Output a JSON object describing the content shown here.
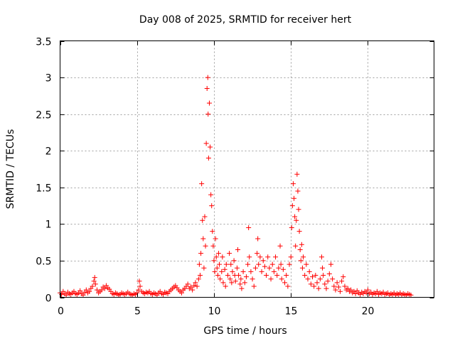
{
  "chart_data": {
    "type": "scatter",
    "title": "Day 008 of 2025, SRMTID for receiver hert",
    "xlabel": "GPS time / hours",
    "ylabel": "SRMTID / TECUs",
    "xlim": [
      0,
      24.3
    ],
    "ylim": [
      0,
      3.5
    ],
    "x_ticks": [
      0,
      5,
      10,
      15,
      20
    ],
    "x_tick_labels": [
      "0",
      "5",
      "10",
      "15",
      "20"
    ],
    "y_ticks": [
      0,
      0.5,
      1,
      1.5,
      2,
      2.5,
      3,
      3.5
    ],
    "y_tick_labels": [
      "0",
      "0.5",
      "1",
      "1.5",
      "2",
      "2.5",
      "3",
      "3.5"
    ],
    "grid": true,
    "marker": "+",
    "color": "#ff0000",
    "series": [
      {
        "name": "SRMTID",
        "points": [
          [
            0.0,
            0.06
          ],
          [
            0.1,
            0.04
          ],
          [
            0.2,
            0.08
          ],
          [
            0.3,
            0.05
          ],
          [
            0.4,
            0.03
          ],
          [
            0.5,
            0.07
          ],
          [
            0.6,
            0.05
          ],
          [
            0.7,
            0.04
          ],
          [
            0.8,
            0.06
          ],
          [
            0.9,
            0.08
          ],
          [
            1.0,
            0.05
          ],
          [
            1.1,
            0.04
          ],
          [
            1.2,
            0.06
          ],
          [
            1.3,
            0.09
          ],
          [
            1.4,
            0.05
          ],
          [
            1.5,
            0.03
          ],
          [
            1.6,
            0.07
          ],
          [
            1.7,
            0.1
          ],
          [
            1.8,
            0.06
          ],
          [
            1.9,
            0.08
          ],
          [
            2.0,
            0.12
          ],
          [
            2.1,
            0.15
          ],
          [
            2.2,
            0.22
          ],
          [
            2.25,
            0.27
          ],
          [
            2.3,
            0.18
          ],
          [
            2.4,
            0.1
          ],
          [
            2.5,
            0.06
          ],
          [
            2.6,
            0.08
          ],
          [
            2.7,
            0.1
          ],
          [
            2.8,
            0.14
          ],
          [
            2.9,
            0.12
          ],
          [
            3.0,
            0.16
          ],
          [
            3.1,
            0.13
          ],
          [
            3.2,
            0.11
          ],
          [
            3.3,
            0.08
          ],
          [
            3.4,
            0.05
          ],
          [
            3.5,
            0.04
          ],
          [
            3.6,
            0.06
          ],
          [
            3.7,
            0.05
          ],
          [
            3.8,
            0.03
          ],
          [
            3.9,
            0.04
          ],
          [
            4.0,
            0.06
          ],
          [
            4.1,
            0.05
          ],
          [
            4.2,
            0.04
          ],
          [
            4.3,
            0.05
          ],
          [
            4.4,
            0.07
          ],
          [
            4.5,
            0.05
          ],
          [
            4.6,
            0.04
          ],
          [
            4.7,
            0.03
          ],
          [
            4.8,
            0.05
          ],
          [
            4.9,
            0.04
          ],
          [
            5.0,
            0.06
          ],
          [
            5.1,
            0.1
          ],
          [
            5.15,
            0.22
          ],
          [
            5.2,
            0.15
          ],
          [
            5.3,
            0.08
          ],
          [
            5.4,
            0.06
          ],
          [
            5.5,
            0.05
          ],
          [
            5.6,
            0.07
          ],
          [
            5.7,
            0.06
          ],
          [
            5.8,
            0.08
          ],
          [
            5.9,
            0.05
          ],
          [
            6.0,
            0.04
          ],
          [
            6.1,
            0.06
          ],
          [
            6.2,
            0.05
          ],
          [
            6.3,
            0.03
          ],
          [
            6.4,
            0.06
          ],
          [
            6.5,
            0.08
          ],
          [
            6.6,
            0.05
          ],
          [
            6.7,
            0.04
          ],
          [
            6.8,
            0.07
          ],
          [
            6.9,
            0.06
          ],
          [
            7.0,
            0.05
          ],
          [
            7.1,
            0.08
          ],
          [
            7.2,
            0.1
          ],
          [
            7.3,
            0.12
          ],
          [
            7.4,
            0.14
          ],
          [
            7.5,
            0.16
          ],
          [
            7.6,
            0.13
          ],
          [
            7.7,
            0.1
          ],
          [
            7.8,
            0.08
          ],
          [
            7.9,
            0.06
          ],
          [
            8.0,
            0.1
          ],
          [
            8.1,
            0.12
          ],
          [
            8.2,
            0.15
          ],
          [
            8.3,
            0.18
          ],
          [
            8.4,
            0.12
          ],
          [
            8.5,
            0.14
          ],
          [
            8.6,
            0.1
          ],
          [
            8.7,
            0.16
          ],
          [
            8.8,
            0.2
          ],
          [
            8.9,
            0.15
          ],
          [
            9.0,
            0.25
          ],
          [
            9.05,
            0.45
          ],
          [
            9.1,
            0.3
          ],
          [
            9.15,
            0.6
          ],
          [
            9.2,
            1.55
          ],
          [
            9.25,
            1.05
          ],
          [
            9.3,
            0.8
          ],
          [
            9.35,
            0.4
          ],
          [
            9.4,
            1.1
          ],
          [
            9.45,
            0.7
          ],
          [
            9.5,
            2.1
          ],
          [
            9.55,
            2.85
          ],
          [
            9.6,
            3.0
          ],
          [
            9.62,
            2.5
          ],
          [
            9.65,
            1.9
          ],
          [
            9.7,
            2.65
          ],
          [
            9.75,
            2.05
          ],
          [
            9.8,
            1.4
          ],
          [
            9.85,
            1.25
          ],
          [
            9.9,
            0.9
          ],
          [
            9.95,
            0.7
          ],
          [
            10.0,
            0.5
          ],
          [
            10.05,
            0.35
          ],
          [
            10.1,
            0.8
          ],
          [
            10.15,
            0.55
          ],
          [
            10.2,
            0.4
          ],
          [
            10.25,
            0.3
          ],
          [
            10.3,
            0.6
          ],
          [
            10.35,
            0.45
          ],
          [
            10.4,
            0.25
          ],
          [
            10.5,
            0.35
          ],
          [
            10.55,
            0.55
          ],
          [
            10.6,
            0.2
          ],
          [
            10.7,
            0.38
          ],
          [
            10.75,
            0.15
          ],
          [
            10.8,
            0.45
          ],
          [
            10.9,
            0.3
          ],
          [
            11.0,
            0.6
          ],
          [
            11.05,
            0.25
          ],
          [
            11.1,
            0.45
          ],
          [
            11.15,
            0.2
          ],
          [
            11.2,
            0.35
          ],
          [
            11.3,
            0.5
          ],
          [
            11.35,
            0.3
          ],
          [
            11.4,
            0.22
          ],
          [
            11.5,
            0.4
          ],
          [
            11.55,
            0.65
          ],
          [
            11.6,
            0.3
          ],
          [
            11.7,
            0.18
          ],
          [
            11.75,
            0.25
          ],
          [
            11.8,
            0.12
          ],
          [
            11.9,
            0.35
          ],
          [
            12.0,
            0.2
          ],
          [
            12.1,
            0.28
          ],
          [
            12.2,
            0.45
          ],
          [
            12.25,
            0.95
          ],
          [
            12.3,
            0.55
          ],
          [
            12.4,
            0.35
          ],
          [
            12.5,
            0.25
          ],
          [
            12.6,
            0.15
          ],
          [
            12.7,
            0.4
          ],
          [
            12.8,
            0.6
          ],
          [
            12.85,
            0.8
          ],
          [
            12.9,
            0.45
          ],
          [
            13.0,
            0.55
          ],
          [
            13.1,
            0.35
          ],
          [
            13.2,
            0.5
          ],
          [
            13.3,
            0.42
          ],
          [
            13.4,
            0.3
          ],
          [
            13.5,
            0.55
          ],
          [
            13.6,
            0.4
          ],
          [
            13.7,
            0.25
          ],
          [
            13.8,
            0.45
          ],
          [
            13.9,
            0.35
          ],
          [
            14.0,
            0.55
          ],
          [
            14.1,
            0.3
          ],
          [
            14.2,
            0.4
          ],
          [
            14.3,
            0.7
          ],
          [
            14.35,
            0.45
          ],
          [
            14.4,
            0.25
          ],
          [
            14.5,
            0.38
          ],
          [
            14.6,
            0.2
          ],
          [
            14.7,
            0.3
          ],
          [
            14.8,
            0.15
          ],
          [
            14.9,
            0.45
          ],
          [
            15.0,
            0.55
          ],
          [
            15.05,
            0.95
          ],
          [
            15.1,
            1.25
          ],
          [
            15.15,
            1.55
          ],
          [
            15.2,
            1.35
          ],
          [
            15.25,
            1.1
          ],
          [
            15.3,
            0.7
          ],
          [
            15.35,
            1.05
          ],
          [
            15.4,
            1.68
          ],
          [
            15.45,
            1.45
          ],
          [
            15.5,
            1.2
          ],
          [
            15.55,
            0.9
          ],
          [
            15.6,
            0.65
          ],
          [
            15.65,
            0.5
          ],
          [
            15.7,
            0.72
          ],
          [
            15.75,
            0.4
          ],
          [
            15.8,
            0.55
          ],
          [
            15.9,
            0.3
          ],
          [
            16.0,
            0.45
          ],
          [
            16.1,
            0.25
          ],
          [
            16.2,
            0.35
          ],
          [
            16.3,
            0.18
          ],
          [
            16.4,
            0.28
          ],
          [
            16.5,
            0.15
          ],
          [
            16.6,
            0.3
          ],
          [
            16.7,
            0.2
          ],
          [
            16.8,
            0.12
          ],
          [
            16.9,
            0.25
          ],
          [
            17.0,
            0.55
          ],
          [
            17.05,
            0.4
          ],
          [
            17.1,
            0.3
          ],
          [
            17.2,
            0.18
          ],
          [
            17.3,
            0.12
          ],
          [
            17.4,
            0.22
          ],
          [
            17.5,
            0.32
          ],
          [
            17.6,
            0.45
          ],
          [
            17.7,
            0.25
          ],
          [
            17.8,
            0.15
          ],
          [
            17.9,
            0.1
          ],
          [
            18.0,
            0.2
          ],
          [
            18.1,
            0.14
          ],
          [
            18.2,
            0.08
          ],
          [
            18.3,
            0.22
          ],
          [
            18.4,
            0.28
          ],
          [
            18.5,
            0.15
          ],
          [
            18.6,
            0.1
          ],
          [
            18.7,
            0.12
          ],
          [
            18.8,
            0.08
          ],
          [
            18.9,
            0.1
          ],
          [
            19.0,
            0.06
          ],
          [
            19.1,
            0.08
          ],
          [
            19.2,
            0.05
          ],
          [
            19.3,
            0.09
          ],
          [
            19.4,
            0.06
          ],
          [
            19.5,
            0.04
          ],
          [
            19.6,
            0.07
          ],
          [
            19.7,
            0.05
          ],
          [
            19.8,
            0.08
          ],
          [
            19.9,
            0.06
          ],
          [
            20.0,
            0.1
          ],
          [
            20.1,
            0.05
          ],
          [
            20.2,
            0.07
          ],
          [
            20.3,
            0.04
          ],
          [
            20.4,
            0.06
          ],
          [
            20.5,
            0.05
          ],
          [
            20.6,
            0.08
          ],
          [
            20.7,
            0.04
          ],
          [
            20.8,
            0.06
          ],
          [
            20.9,
            0.05
          ],
          [
            21.0,
            0.07
          ],
          [
            21.1,
            0.04
          ],
          [
            21.2,
            0.05
          ],
          [
            21.3,
            0.06
          ],
          [
            21.4,
            0.03
          ],
          [
            21.5,
            0.05
          ],
          [
            21.6,
            0.04
          ],
          [
            21.7,
            0.06
          ],
          [
            21.8,
            0.03
          ],
          [
            21.9,
            0.05
          ],
          [
            22.0,
            0.04
          ],
          [
            22.1,
            0.06
          ],
          [
            22.2,
            0.03
          ],
          [
            22.3,
            0.05
          ],
          [
            22.4,
            0.04
          ],
          [
            22.5,
            0.03
          ],
          [
            22.6,
            0.05
          ],
          [
            22.7,
            0.04
          ],
          [
            22.8,
            0.03
          ]
        ]
      }
    ]
  }
}
